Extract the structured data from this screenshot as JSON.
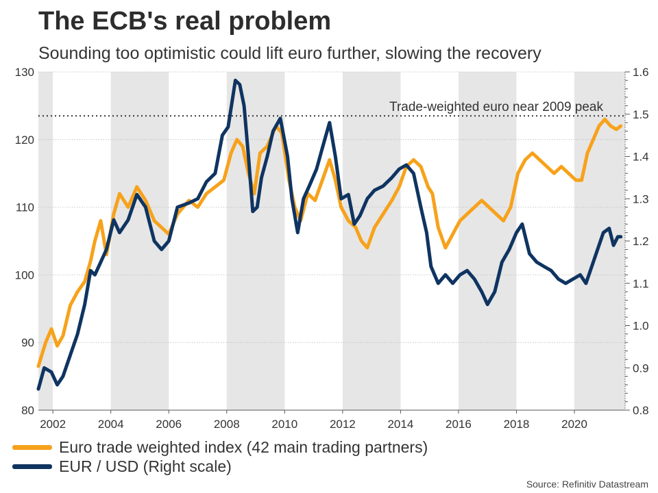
{
  "header": {
    "title": "The ECB's real problem",
    "subtitle": "Sounding too optimistic could lift euro further, slowing the recovery"
  },
  "source": "Source: Refinitiv Datastream",
  "colors": {
    "twi": "#f7a21b",
    "eurusd": "#0f3461",
    "band": "#e6e6e6",
    "grid": "#bbbbbb"
  },
  "legend": [
    {
      "label": "Euro trade weighted index (42 main trading partners)",
      "color": "#f7a21b"
    },
    {
      "label": "EUR / USD (Right scale)",
      "color": "#0f3461"
    }
  ],
  "chart_data": {
    "type": "line",
    "title": "The ECB's real problem",
    "subtitle": "Sounding too optimistic could lift euro further, slowing the recovery",
    "x_range": [
      2001.5,
      2021.75
    ],
    "x_ticks": [
      2002,
      2004,
      2006,
      2008,
      2010,
      2012,
      2014,
      2016,
      2018,
      2020
    ],
    "x_tick_labels": [
      "2002",
      "2004",
      "2006",
      "2008",
      "2010",
      "2012",
      "2014",
      "2016",
      "2018",
      "2020"
    ],
    "shaded_bands": [
      [
        2001.5,
        2002
      ],
      [
        2004,
        2006
      ],
      [
        2008,
        2010
      ],
      [
        2012,
        2014
      ],
      [
        2016,
        2018
      ],
      [
        2020,
        2021.75
      ]
    ],
    "y_left": {
      "range": [
        80,
        130
      ],
      "ticks": [
        80,
        90,
        100,
        110,
        120,
        130
      ],
      "tick_labels": [
        "80",
        "90",
        "100",
        "110",
        "120",
        "130"
      ]
    },
    "y_right": {
      "range": [
        0.8,
        1.6
      ],
      "ticks": [
        0.8,
        0.9,
        1.0,
        1.1,
        1.2,
        1.3,
        1.4,
        1.5,
        1.6
      ],
      "tick_labels": [
        "0.8",
        "0.9",
        "1.0",
        "1.1",
        "1.2",
        "1.3",
        "1.4",
        "1.5",
        "1.6"
      ]
    },
    "reference_line": {
      "axis": "left",
      "value": 123.5,
      "label": "Trade-weighted euro near 2009 peak",
      "style": "dotted"
    },
    "series": [
      {
        "name": "Euro trade weighted index (42 main trading partners)",
        "axis": "left",
        "x": [
          2001.5,
          2001.75,
          2001.95,
          2002.15,
          2002.35,
          2002.6,
          2002.85,
          2003.1,
          2003.3,
          2003.45,
          2003.65,
          2003.85,
          2004.1,
          2004.3,
          2004.6,
          2004.9,
          2005.2,
          2005.5,
          2005.75,
          2006.0,
          2006.3,
          2006.7,
          2007.0,
          2007.3,
          2007.6,
          2007.9,
          2008.15,
          2008.35,
          2008.55,
          2008.75,
          2008.95,
          2009.15,
          2009.4,
          2009.7,
          2009.9,
          2010.15,
          2010.35,
          2010.55,
          2010.8,
          2011.05,
          2011.3,
          2011.55,
          2011.75,
          2011.95,
          2012.2,
          2012.45,
          2012.65,
          2012.85,
          2013.1,
          2013.4,
          2013.7,
          2013.95,
          2014.2,
          2014.45,
          2014.7,
          2014.95,
          2015.1,
          2015.3,
          2015.55,
          2015.8,
          2016.05,
          2016.3,
          2016.55,
          2016.8,
          2017.05,
          2017.3,
          2017.55,
          2017.8,
          2018.05,
          2018.3,
          2018.55,
          2018.8,
          2019.05,
          2019.3,
          2019.55,
          2019.8,
          2020.05,
          2020.25,
          2020.45,
          2020.65,
          2020.85,
          2021.05,
          2021.25,
          2021.45,
          2021.6
        ],
        "values": [
          86.5,
          90,
          92,
          89.5,
          91,
          95.5,
          97.5,
          99,
          102,
          105,
          108,
          103,
          109,
          112,
          110,
          113,
          111,
          108,
          107,
          106,
          109,
          111,
          110,
          112,
          113,
          114,
          118,
          120,
          119,
          115,
          112,
          118,
          119,
          122,
          121,
          114,
          110,
          108,
          112,
          111,
          114,
          117,
          114,
          110,
          108,
          107,
          105,
          104,
          107,
          109,
          111,
          113,
          116,
          117,
          116,
          113,
          112,
          107,
          104,
          106,
          108,
          109,
          110,
          111,
          110,
          109,
          108,
          110,
          115,
          117,
          118,
          117,
          116,
          115,
          116,
          115,
          114,
          114,
          118,
          120,
          122,
          123,
          122,
          121.5,
          122
        ]
      },
      {
        "name": "EUR / USD (Right scale)",
        "axis": "right",
        "x": [
          2001.5,
          2001.7,
          2001.95,
          2002.15,
          2002.35,
          2002.6,
          2002.85,
          2003.1,
          2003.3,
          2003.45,
          2003.65,
          2003.85,
          2004.1,
          2004.3,
          2004.6,
          2004.9,
          2005.2,
          2005.5,
          2005.75,
          2006.0,
          2006.3,
          2006.7,
          2007.0,
          2007.3,
          2007.6,
          2007.85,
          2008.05,
          2008.3,
          2008.45,
          2008.6,
          2008.75,
          2008.9,
          2009.05,
          2009.2,
          2009.4,
          2009.6,
          2009.85,
          2010.1,
          2010.25,
          2010.45,
          2010.65,
          2010.85,
          2011.1,
          2011.3,
          2011.55,
          2011.75,
          2011.95,
          2012.2,
          2012.4,
          2012.6,
          2012.85,
          2013.1,
          2013.4,
          2013.7,
          2013.95,
          2014.2,
          2014.45,
          2014.7,
          2014.9,
          2015.05,
          2015.3,
          2015.55,
          2015.8,
          2016.05,
          2016.3,
          2016.55,
          2016.8,
          2017.0,
          2017.25,
          2017.5,
          2017.75,
          2018.0,
          2018.2,
          2018.45,
          2018.7,
          2018.95,
          2019.2,
          2019.45,
          2019.7,
          2019.95,
          2020.2,
          2020.4,
          2020.6,
          2020.8,
          2021.0,
          2021.2,
          2021.35,
          2021.5,
          2021.6
        ],
        "values": [
          0.85,
          0.9,
          0.89,
          0.86,
          0.88,
          0.93,
          0.98,
          1.05,
          1.13,
          1.12,
          1.15,
          1.18,
          1.25,
          1.22,
          1.25,
          1.31,
          1.28,
          1.2,
          1.18,
          1.2,
          1.28,
          1.29,
          1.3,
          1.34,
          1.36,
          1.45,
          1.47,
          1.58,
          1.57,
          1.52,
          1.4,
          1.27,
          1.28,
          1.35,
          1.4,
          1.46,
          1.49,
          1.4,
          1.3,
          1.22,
          1.3,
          1.33,
          1.37,
          1.42,
          1.48,
          1.4,
          1.3,
          1.31,
          1.24,
          1.26,
          1.3,
          1.32,
          1.33,
          1.35,
          1.37,
          1.38,
          1.36,
          1.28,
          1.22,
          1.14,
          1.1,
          1.12,
          1.1,
          1.12,
          1.13,
          1.11,
          1.08,
          1.05,
          1.08,
          1.15,
          1.18,
          1.22,
          1.24,
          1.17,
          1.15,
          1.14,
          1.13,
          1.11,
          1.1,
          1.11,
          1.12,
          1.1,
          1.14,
          1.18,
          1.22,
          1.23,
          1.19,
          1.21,
          1.21
        ]
      }
    ]
  }
}
